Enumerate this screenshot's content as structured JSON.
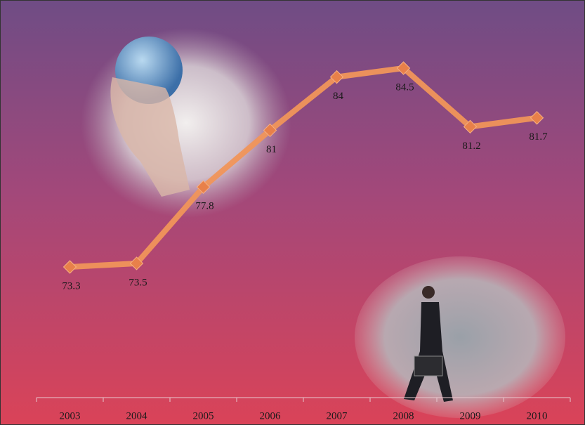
{
  "chart_data": {
    "type": "line",
    "categories": [
      "2003",
      "2004",
      "2005",
      "2006",
      "2007",
      "2008",
      "2009",
      "2010"
    ],
    "values": [
      73.3,
      73.5,
      77.8,
      81,
      84,
      84.5,
      81.2,
      81.7
    ],
    "color": "#f0955a"
  }
}
